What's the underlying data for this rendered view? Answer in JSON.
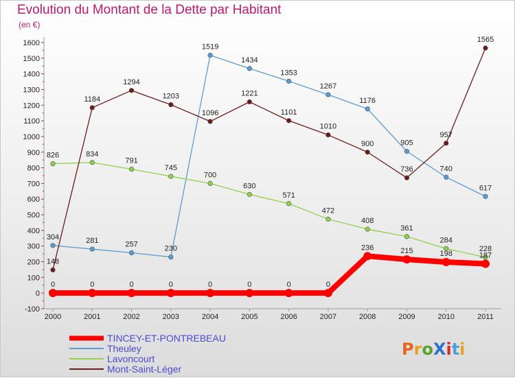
{
  "chart_data": {
    "type": "line",
    "title": "Evolution du Montant de la Dette par Habitant",
    "subtitle": "(en €)",
    "xlabel": "",
    "ylabel": "",
    "x": [
      2000,
      2001,
      2002,
      2003,
      2004,
      2005,
      2006,
      2007,
      2008,
      2009,
      2010,
      2011
    ],
    "ylim": [
      -100,
      1600
    ],
    "yticks": [
      -100,
      0,
      100,
      200,
      300,
      400,
      500,
      600,
      700,
      800,
      900,
      1000,
      1100,
      1200,
      1300,
      1400,
      1500,
      1600
    ],
    "grid": false,
    "legend_position": "bottom-left",
    "series": [
      {
        "name": "TINCEY-ET-PONTREBEAU",
        "color": "#ff0000",
        "highlight": true,
        "values": [
          0,
          0,
          0,
          0,
          0,
          0,
          0,
          0,
          236,
          215,
          198,
          187
        ]
      },
      {
        "name": "Theuley",
        "color": "#5b9bd5",
        "values": [
          304,
          281,
          257,
          230,
          1519,
          1434,
          1353,
          1267,
          1176,
          905,
          740,
          617
        ]
      },
      {
        "name": "Lavoncourt",
        "color": "#8cd14a",
        "values": [
          826,
          834,
          791,
          745,
          700,
          630,
          571,
          472,
          408,
          361,
          284,
          228
        ]
      },
      {
        "name": "Mont-Saint-Léger",
        "color": "#6b1a1a",
        "values": [
          148,
          1184,
          1294,
          1203,
          1096,
          1221,
          1101,
          1010,
          900,
          736,
          957,
          1565
        ]
      }
    ]
  },
  "logo": {
    "text": "ProXiti"
  }
}
